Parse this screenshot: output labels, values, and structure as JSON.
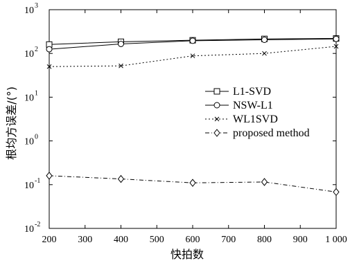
{
  "chart_data": {
    "type": "line",
    "xlabel": "快拍数",
    "ylabel": "根均方误差/(°)",
    "x": [
      200,
      400,
      600,
      800,
      1000
    ],
    "xlim": [
      200,
      1000
    ],
    "ylim": [
      0.01,
      1000
    ],
    "yscale": "log",
    "x_tick_labels": [
      "200",
      "300",
      "400",
      "500",
      "600",
      "700",
      "800",
      "900",
      "1 000"
    ],
    "y_tick_labels": [
      {
        "base": "10",
        "exp": "-2"
      },
      {
        "base": "10",
        "exp": "-1"
      },
      {
        "base": "10",
        "exp": "0"
      },
      {
        "base": "10",
        "exp": "1"
      },
      {
        "base": "10",
        "exp": "2"
      },
      {
        "base": "10",
        "exp": "3"
      }
    ],
    "grid": false,
    "legend_position": "center-right",
    "series": [
      {
        "name": "L1-SVD",
        "values": [
          160,
          185,
          200,
          215,
          220
        ],
        "marker": "square",
        "dash": "solid"
      },
      {
        "name": "NSW-L1",
        "values": [
          125,
          165,
          195,
          205,
          215
        ],
        "marker": "circle",
        "dash": "solid"
      },
      {
        "name": "WL1SVD",
        "values": [
          50,
          52,
          88,
          100,
          145
        ],
        "marker": "x",
        "dash": "dotted"
      },
      {
        "name": "proposed method",
        "values": [
          0.16,
          0.135,
          0.11,
          0.115,
          0.068
        ],
        "marker": "diamond",
        "dash": "dashdot"
      }
    ]
  }
}
